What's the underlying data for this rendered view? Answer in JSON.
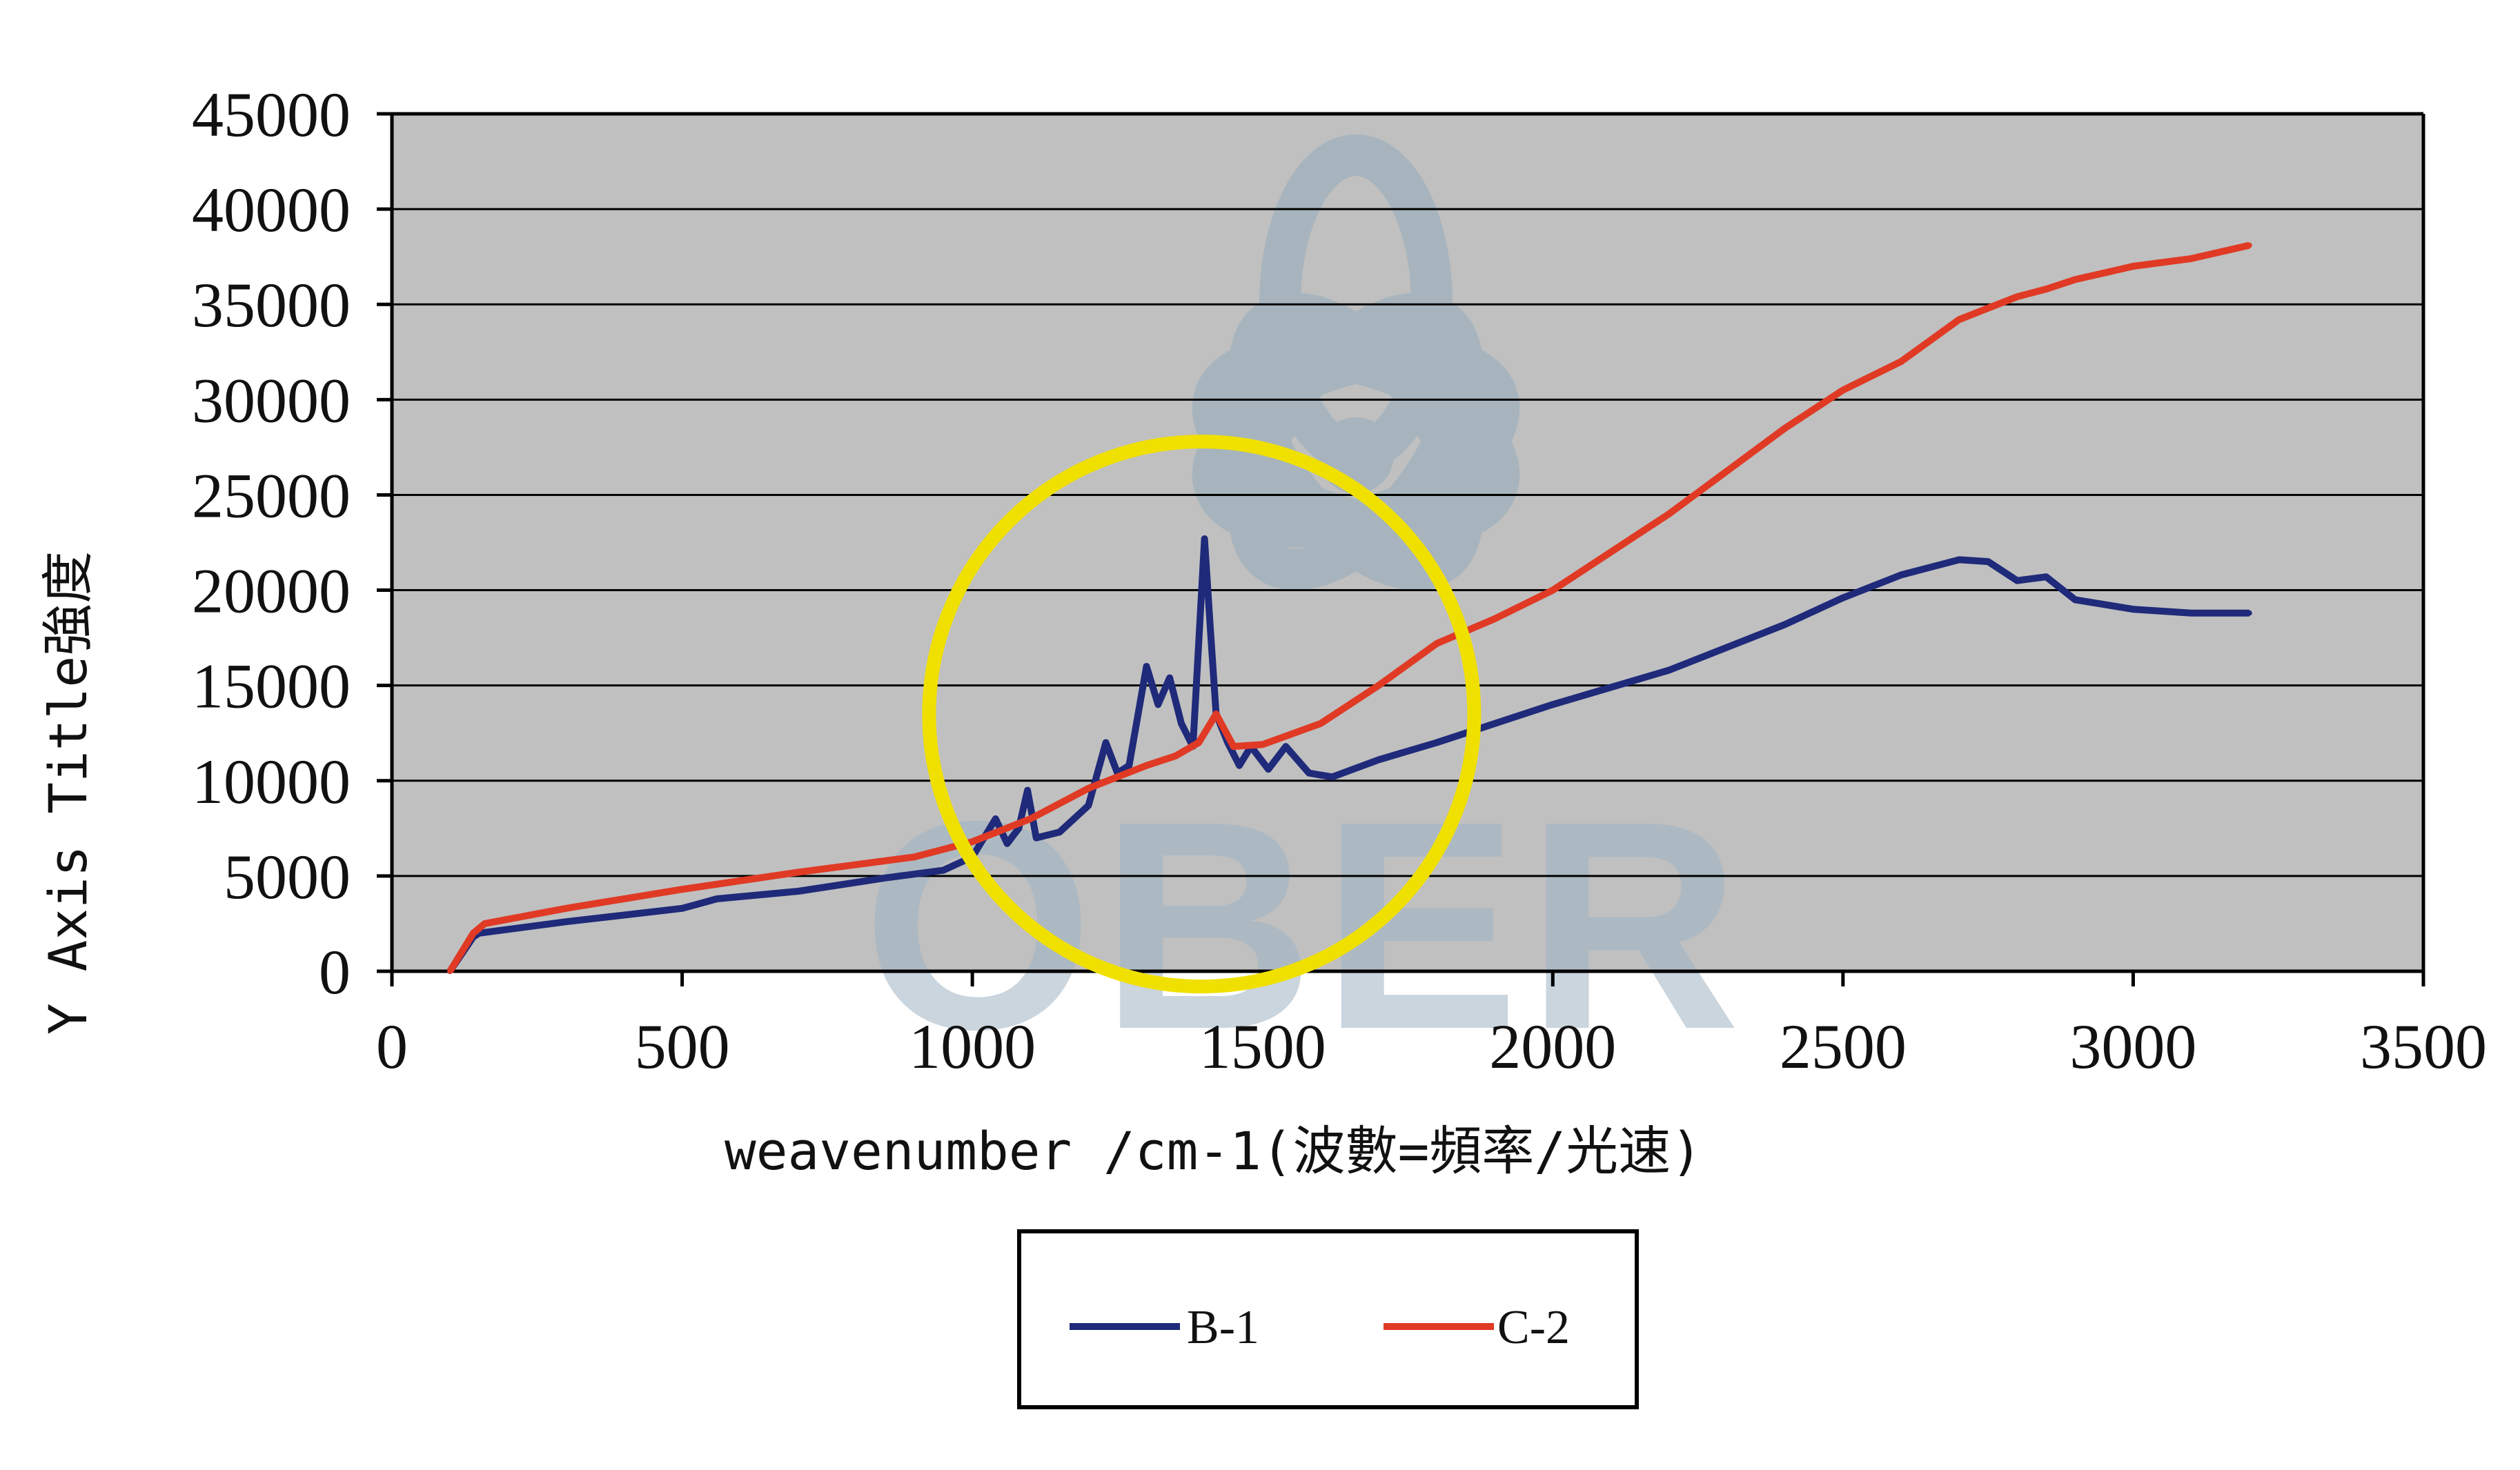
{
  "chart_data": {
    "type": "line",
    "xlabel": "weavenumber /cm-1(波數=頻率/光速)",
    "ylabel": "Y Axis Title強度",
    "xlim": [
      0,
      3500
    ],
    "ylim": [
      0,
      45000
    ],
    "x_ticks": [
      "0",
      "500",
      "1000",
      "1500",
      "2000",
      "2500",
      "3000",
      "3500"
    ],
    "y_ticks": [
      "0",
      "5000",
      "10000",
      "15000",
      "20000",
      "25000",
      "30000",
      "35000",
      "40000",
      "45000"
    ],
    "grid": "horizontal",
    "legend_position": "bottom-center",
    "plot_background": "#c0c0c0",
    "series": [
      {
        "name": "B-1",
        "color": "#1f2a7a",
        "x": [
          100,
          140,
          150,
          300,
          500,
          560,
          700,
          850,
          950,
          1000,
          1040,
          1060,
          1080,
          1095,
          1110,
          1150,
          1200,
          1230,
          1250,
          1270,
          1300,
          1320,
          1340,
          1360,
          1380,
          1400,
          1410,
          1420,
          1440,
          1460,
          1480,
          1510,
          1540,
          1580,
          1620,
          1700,
          1800,
          1900,
          2000,
          2200,
          2400,
          2500,
          2600,
          2700,
          2750,
          2800,
          2850,
          2900,
          3000,
          3100,
          3200
        ],
        "y": [
          0,
          1800,
          2000,
          2600,
          3300,
          3800,
          4200,
          4900,
          5300,
          6000,
          8000,
          6700,
          7500,
          9500,
          7000,
          7300,
          8700,
          12000,
          10400,
          10800,
          16000,
          14000,
          15400,
          13000,
          11800,
          22700,
          18000,
          13500,
          12000,
          10800,
          11800,
          10600,
          11800,
          10400,
          10200,
          11100,
          12000,
          13000,
          14000,
          15800,
          18200,
          19600,
          20800,
          21600,
          21500,
          20500,
          20700,
          19500,
          19000,
          18800,
          18800
        ]
      },
      {
        "name": "C-2",
        "color": "#e03a25",
        "x": [
          100,
          140,
          160,
          300,
          500,
          700,
          900,
          1000,
          1100,
          1200,
          1300,
          1350,
          1390,
          1420,
          1450,
          1500,
          1600,
          1700,
          1800,
          1900,
          2000,
          2200,
          2400,
          2500,
          2600,
          2700,
          2800,
          2850,
          2900,
          3000,
          3100,
          3200
        ],
        "y": [
          0,
          2000,
          2500,
          3300,
          4300,
          5200,
          6000,
          6800,
          8000,
          9600,
          10800,
          11300,
          12000,
          13500,
          11800,
          11900,
          13000,
          15000,
          17200,
          18500,
          20000,
          24000,
          28500,
          30500,
          32000,
          34200,
          35400,
          35800,
          36300,
          37000,
          37400,
          38100
        ]
      }
    ],
    "annotations": [
      {
        "type": "circle",
        "color": "#f0e000",
        "description_of_region": "highlight"
      }
    ]
  },
  "watermark": {
    "text": "OBER",
    "color": "#9fb4c4"
  },
  "legend": {
    "items": [
      {
        "label": "B-1",
        "color": "#1f2a7a"
      },
      {
        "label": "C-2",
        "color": "#e03a25"
      }
    ]
  }
}
